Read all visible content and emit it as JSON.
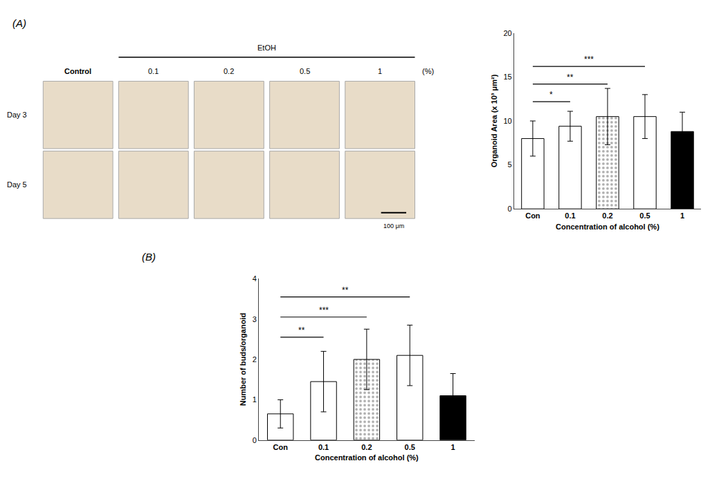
{
  "chart_data": [
    {
      "type": "image_grid",
      "title": "(A)",
      "categories": [
        "Control",
        "0.1",
        "0.2",
        "0.5",
        "1"
      ],
      "rows": [
        "Day 3",
        "Day 5"
      ],
      "annotations": [
        "EtOH",
        "(%)",
        "100 μm"
      ],
      "color": "#e8dcc8"
    },
    {
      "type": "bar",
      "categories": [
        "Con",
        "0.1",
        "0.2",
        "0.5",
        "1"
      ],
      "values": [
        8.0,
        9.4,
        10.5,
        10.5,
        8.8
      ],
      "errors": [
        2.0,
        1.7,
        3.2,
        2.5,
        2.2
      ],
      "colors": [
        "white",
        "white",
        "darkgray",
        "white",
        "black"
      ],
      "xlabel": "Concentration of alcohol (%)",
      "ylabel": "Organoid Area (x 10³ μm²)",
      "ylim": [
        0,
        20
      ],
      "yticks": [
        0,
        5,
        10,
        15,
        20
      ],
      "grid": false,
      "sig_lines": [
        {
          "x1": 0,
          "x2": 1,
          "y": 12.2,
          "label": "*"
        },
        {
          "x1": 0,
          "x2": 2,
          "y": 14.2,
          "label": "**"
        },
        {
          "x1": 0,
          "x2": 3,
          "y": 16.2,
          "label": "***"
        }
      ]
    },
    {
      "type": "bar",
      "title": "(B)",
      "categories": [
        "Con",
        "0.1",
        "0.2",
        "0.5",
        "1"
      ],
      "values": [
        0.65,
        1.45,
        2.0,
        2.1,
        1.1
      ],
      "errors": [
        0.35,
        0.75,
        0.75,
        0.75,
        0.55
      ],
      "colors": [
        "white",
        "white",
        "darkgray",
        "white",
        "black"
      ],
      "xlabel": "Concentration of alcohol (%)",
      "ylabel": "Number of buds/organoid",
      "ylim": [
        0,
        4
      ],
      "yticks": [
        0,
        1,
        2,
        3,
        4
      ],
      "grid": false,
      "sig_lines": [
        {
          "x1": 0,
          "x2": 1,
          "y": 2.55,
          "label": "**"
        },
        {
          "x1": 0,
          "x2": 2,
          "y": 3.05,
          "label": "***"
        },
        {
          "x1": 0,
          "x2": 3,
          "y": 3.55,
          "label": "**"
        }
      ]
    }
  ]
}
